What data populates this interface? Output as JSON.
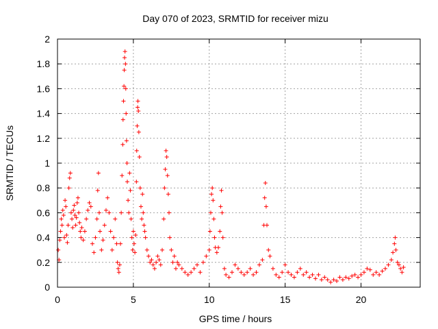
{
  "chart_data": {
    "type": "scatter",
    "title": "Day 070 of 2023, SRMTID for receiver mizu",
    "xlabel": "GPS time / hours",
    "ylabel": "SRMTID / TECUs",
    "xlim": [
      0,
      23.9
    ],
    "ylim": [
      0,
      2
    ],
    "xticks": [
      0,
      5,
      10,
      15,
      20
    ],
    "xtick_labels": [
      "0",
      "5",
      "10",
      "15",
      "20"
    ],
    "yticks": [
      0,
      0.2,
      0.4,
      0.6,
      0.8,
      1,
      1.2,
      1.4,
      1.6,
      1.8,
      2
    ],
    "ytick_labels": [
      "0",
      "0.2",
      "0.4",
      "0.6",
      "0.8",
      "1",
      "1.2",
      "1.4",
      "1.6",
      "1.8",
      "2"
    ],
    "grid": true,
    "marker": "+",
    "series": [
      {
        "name": "SRMTID",
        "color": "#ff0000",
        "points": [
          [
            0.05,
            0.3
          ],
          [
            0.1,
            0.22
          ],
          [
            0.15,
            0.38
          ],
          [
            0.2,
            0.45
          ],
          [
            0.25,
            0.55
          ],
          [
            0.3,
            0.5
          ],
          [
            0.35,
            0.62
          ],
          [
            0.4,
            0.58
          ],
          [
            0.45,
            0.4
          ],
          [
            0.5,
            0.7
          ],
          [
            0.55,
            0.65
          ],
          [
            0.6,
            0.42
          ],
          [
            0.65,
            0.36
          ],
          [
            0.7,
            0.5
          ],
          [
            0.75,
            0.8
          ],
          [
            0.8,
            0.88
          ],
          [
            0.85,
            0.92
          ],
          [
            0.9,
            0.6
          ],
          [
            0.95,
            0.55
          ],
          [
            1.0,
            0.48
          ],
          [
            1.05,
            0.62
          ],
          [
            1.1,
            0.66
          ],
          [
            1.15,
            0.58
          ],
          [
            1.2,
            0.5
          ],
          [
            1.25,
            0.56
          ],
          [
            1.3,
            0.68
          ],
          [
            1.35,
            0.72
          ],
          [
            1.4,
            0.6
          ],
          [
            1.45,
            0.52
          ],
          [
            1.5,
            0.45
          ],
          [
            1.55,
            0.4
          ],
          [
            1.6,
            0.48
          ],
          [
            1.7,
            0.38
          ],
          [
            1.8,
            0.45
          ],
          [
            1.9,
            0.55
          ],
          [
            2.0,
            0.62
          ],
          [
            2.1,
            0.68
          ],
          [
            2.2,
            0.65
          ],
          [
            2.3,
            0.35
          ],
          [
            2.4,
            0.28
          ],
          [
            2.5,
            0.4
          ],
          [
            2.6,
            0.55
          ],
          [
            2.65,
            0.78
          ],
          [
            2.7,
            0.92
          ],
          [
            2.75,
            0.6
          ],
          [
            2.8,
            0.45
          ],
          [
            2.9,
            0.3
          ],
          [
            3.0,
            0.38
          ],
          [
            3.1,
            0.5
          ],
          [
            3.2,
            0.62
          ],
          [
            3.3,
            0.72
          ],
          [
            3.4,
            0.6
          ],
          [
            3.5,
            0.45
          ],
          [
            3.6,
            0.3
          ],
          [
            3.7,
            0.4
          ],
          [
            3.8,
            0.55
          ],
          [
            3.9,
            0.35
          ],
          [
            3.95,
            0.2
          ],
          [
            4.0,
            0.15
          ],
          [
            4.05,
            0.12
          ],
          [
            4.1,
            0.18
          ],
          [
            4.15,
            0.35
          ],
          [
            4.2,
            0.6
          ],
          [
            4.25,
            0.9
          ],
          [
            4.3,
            1.15
          ],
          [
            4.32,
            1.35
          ],
          [
            4.35,
            1.5
          ],
          [
            4.38,
            1.62
          ],
          [
            4.4,
            1.75
          ],
          [
            4.42,
            1.85
          ],
          [
            4.45,
            1.9
          ],
          [
            4.48,
            1.8
          ],
          [
            4.5,
            1.6
          ],
          [
            4.52,
            1.4
          ],
          [
            4.55,
            1.18
          ],
          [
            4.58,
            1.0
          ],
          [
            4.6,
            0.85
          ],
          [
            4.65,
            0.7
          ],
          [
            4.7,
            0.6
          ],
          [
            4.75,
            0.92
          ],
          [
            4.8,
            0.78
          ],
          [
            4.85,
            0.55
          ],
          [
            4.9,
            0.4
          ],
          [
            4.95,
            0.3
          ],
          [
            5.0,
            0.45
          ],
          [
            5.05,
            0.35
          ],
          [
            5.1,
            0.28
          ],
          [
            5.15,
            0.42
          ],
          [
            5.2,
            0.85
          ],
          [
            5.22,
            1.1
          ],
          [
            5.25,
            1.3
          ],
          [
            5.28,
            1.45
          ],
          [
            5.3,
            1.5
          ],
          [
            5.33,
            1.42
          ],
          [
            5.36,
            1.25
          ],
          [
            5.4,
            1.05
          ],
          [
            5.45,
            0.8
          ],
          [
            5.5,
            0.65
          ],
          [
            5.55,
            0.55
          ],
          [
            5.6,
            0.75
          ],
          [
            5.65,
            0.6
          ],
          [
            5.7,
            0.5
          ],
          [
            5.75,
            0.45
          ],
          [
            5.8,
            0.4
          ],
          [
            5.9,
            0.3
          ],
          [
            6.0,
            0.25
          ],
          [
            6.1,
            0.2
          ],
          [
            6.2,
            0.22
          ],
          [
            6.3,
            0.18
          ],
          [
            6.4,
            0.15
          ],
          [
            6.5,
            0.2
          ],
          [
            6.6,
            0.25
          ],
          [
            6.7,
            0.22
          ],
          [
            6.8,
            0.18
          ],
          [
            6.9,
            0.3
          ],
          [
            7.0,
            0.55
          ],
          [
            7.05,
            0.8
          ],
          [
            7.1,
            0.95
          ],
          [
            7.15,
            1.1
          ],
          [
            7.2,
            1.05
          ],
          [
            7.25,
            0.9
          ],
          [
            7.3,
            0.75
          ],
          [
            7.35,
            0.6
          ],
          [
            7.4,
            0.4
          ],
          [
            7.5,
            0.3
          ],
          [
            7.6,
            0.2
          ],
          [
            7.7,
            0.25
          ],
          [
            7.8,
            0.15
          ],
          [
            7.9,
            0.2
          ],
          [
            8.0,
            0.18
          ],
          [
            8.2,
            0.15
          ],
          [
            8.4,
            0.12
          ],
          [
            8.6,
            0.1
          ],
          [
            8.8,
            0.12
          ],
          [
            9.0,
            0.15
          ],
          [
            9.2,
            0.18
          ],
          [
            9.4,
            0.12
          ],
          [
            9.6,
            0.2
          ],
          [
            9.8,
            0.25
          ],
          [
            10.0,
            0.3
          ],
          [
            10.05,
            0.45
          ],
          [
            10.1,
            0.6
          ],
          [
            10.15,
            0.75
          ],
          [
            10.2,
            0.8
          ],
          [
            10.25,
            0.7
          ],
          [
            10.3,
            0.55
          ],
          [
            10.35,
            0.4
          ],
          [
            10.4,
            0.32
          ],
          [
            10.5,
            0.28
          ],
          [
            10.6,
            0.32
          ],
          [
            10.7,
            0.45
          ],
          [
            10.75,
            0.65
          ],
          [
            10.8,
            0.78
          ],
          [
            10.85,
            0.6
          ],
          [
            10.9,
            0.4
          ],
          [
            11.0,
            0.15
          ],
          [
            11.1,
            0.1
          ],
          [
            11.3,
            0.08
          ],
          [
            11.5,
            0.12
          ],
          [
            11.7,
            0.18
          ],
          [
            11.9,
            0.15
          ],
          [
            12.1,
            0.12
          ],
          [
            12.3,
            0.1
          ],
          [
            12.5,
            0.12
          ],
          [
            12.7,
            0.15
          ],
          [
            12.9,
            0.1
          ],
          [
            13.1,
            0.12
          ],
          [
            13.3,
            0.18
          ],
          [
            13.5,
            0.22
          ],
          [
            13.6,
            0.5
          ],
          [
            13.65,
            0.72
          ],
          [
            13.7,
            0.84
          ],
          [
            13.75,
            0.65
          ],
          [
            13.8,
            0.5
          ],
          [
            13.9,
            0.3
          ],
          [
            14.0,
            0.25
          ],
          [
            14.2,
            0.15
          ],
          [
            14.4,
            0.1
          ],
          [
            14.6,
            0.08
          ],
          [
            14.8,
            0.12
          ],
          [
            15.0,
            0.18
          ],
          [
            15.2,
            0.12
          ],
          [
            15.4,
            0.1
          ],
          [
            15.6,
            0.08
          ],
          [
            15.8,
            0.12
          ],
          [
            16.0,
            0.15
          ],
          [
            16.2,
            0.1
          ],
          [
            16.4,
            0.12
          ],
          [
            16.6,
            0.08
          ],
          [
            16.8,
            0.1
          ],
          [
            17.0,
            0.07
          ],
          [
            17.2,
            0.1
          ],
          [
            17.4,
            0.06
          ],
          [
            17.6,
            0.08
          ],
          [
            17.8,
            0.06
          ],
          [
            18.0,
            0.04
          ],
          [
            18.2,
            0.06
          ],
          [
            18.4,
            0.05
          ],
          [
            18.6,
            0.08
          ],
          [
            18.8,
            0.06
          ],
          [
            19.0,
            0.08
          ],
          [
            19.2,
            0.07
          ],
          [
            19.4,
            0.09
          ],
          [
            19.6,
            0.1
          ],
          [
            19.8,
            0.08
          ],
          [
            20.0,
            0.1
          ],
          [
            20.2,
            0.12
          ],
          [
            20.4,
            0.15
          ],
          [
            20.6,
            0.14
          ],
          [
            20.8,
            0.1
          ],
          [
            21.0,
            0.12
          ],
          [
            21.2,
            0.1
          ],
          [
            21.4,
            0.13
          ],
          [
            21.6,
            0.15
          ],
          [
            21.8,
            0.18
          ],
          [
            22.0,
            0.22
          ],
          [
            22.1,
            0.28
          ],
          [
            22.2,
            0.35
          ],
          [
            22.25,
            0.4
          ],
          [
            22.3,
            0.3
          ],
          [
            22.4,
            0.2
          ],
          [
            22.5,
            0.18
          ],
          [
            22.6,
            0.15
          ],
          [
            22.7,
            0.12
          ],
          [
            22.8,
            0.16
          ]
        ]
      }
    ]
  }
}
